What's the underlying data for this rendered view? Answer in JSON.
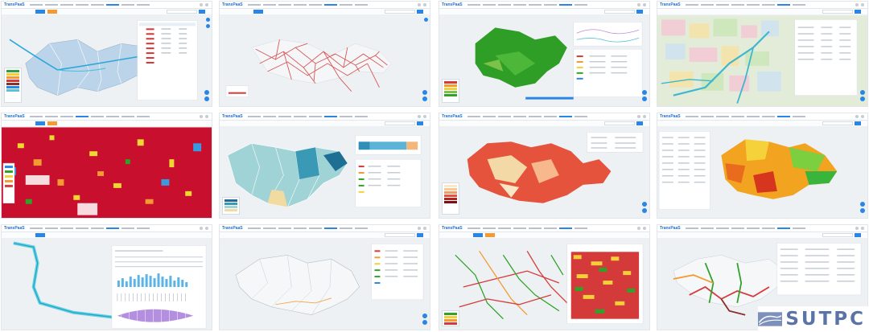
{
  "app": {
    "brand_text": "SUTPC",
    "panel_logo": "TransPaaS"
  },
  "layout": {
    "columns": 4,
    "rows": 3
  },
  "colors": {
    "accent": "#2a86e6",
    "orange": "#f39a32",
    "map_background": "#eef1f4",
    "district_fill": "#b9d3ea",
    "road_red": "#d53a3a",
    "green": "#2fa329",
    "brand": "#5b74a6"
  },
  "panels": [
    {
      "id": "p1",
      "theme": "district-outline-blue-lines"
    },
    {
      "id": "p2",
      "theme": "red-network-lines"
    },
    {
      "id": "p3",
      "theme": "green-grid-map"
    },
    {
      "id": "p4",
      "theme": "colored-land-use"
    },
    {
      "id": "p5",
      "theme": "red-heat-grid"
    },
    {
      "id": "p6",
      "theme": "teal-district-choropleth"
    },
    {
      "id": "p7",
      "theme": "red-heat-map"
    },
    {
      "id": "p8",
      "theme": "orange-green-choropleth"
    },
    {
      "id": "p9",
      "theme": "cyan-route"
    },
    {
      "id": "p10",
      "theme": "outline-map-table"
    },
    {
      "id": "p11",
      "theme": "colored-road-network"
    },
    {
      "id": "p12",
      "theme": "red-green-network"
    }
  ],
  "icons": {
    "brand_mark": "sutpc-logo-mark",
    "tool": "map-tool-icon",
    "zoom": "zoom-control-icon",
    "search": "search-icon"
  }
}
